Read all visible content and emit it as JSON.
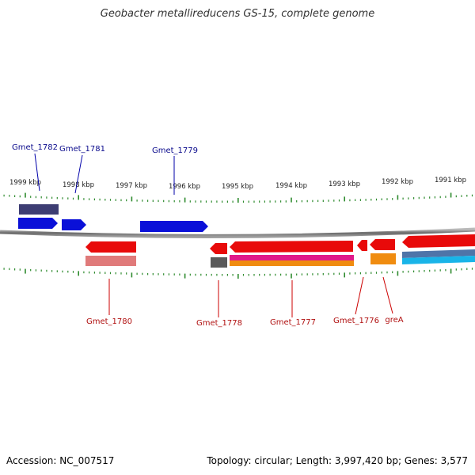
{
  "title": "Geobacter metallireducens GS-15, complete genome",
  "ticks": [
    "1999 kbp",
    "1998 kbp",
    "1997 kbp",
    "1996 kbp",
    "1995 kbp",
    "1994 kbp",
    "1993 kbp",
    "1992 kbp",
    "1991 kbp"
  ],
  "genes": {
    "forward": [
      "Gmet_1782",
      "Gmet_1781",
      "Gmet_1779"
    ],
    "reverse": [
      "Gmet_1780",
      "Gmet_1778",
      "Gmet_1777",
      "Gmet_1776",
      "greA"
    ]
  },
  "accession": "Accession: NC_007517",
  "stats": "Topology: circular; Length: 3,997,420 bp; Genes: 3,577",
  "colors": {
    "forward_strand": "#0a10d8",
    "reverse_strand": "#e80a0a",
    "tick": "#2e8b2e",
    "backbone": "#6a6a6a"
  }
}
